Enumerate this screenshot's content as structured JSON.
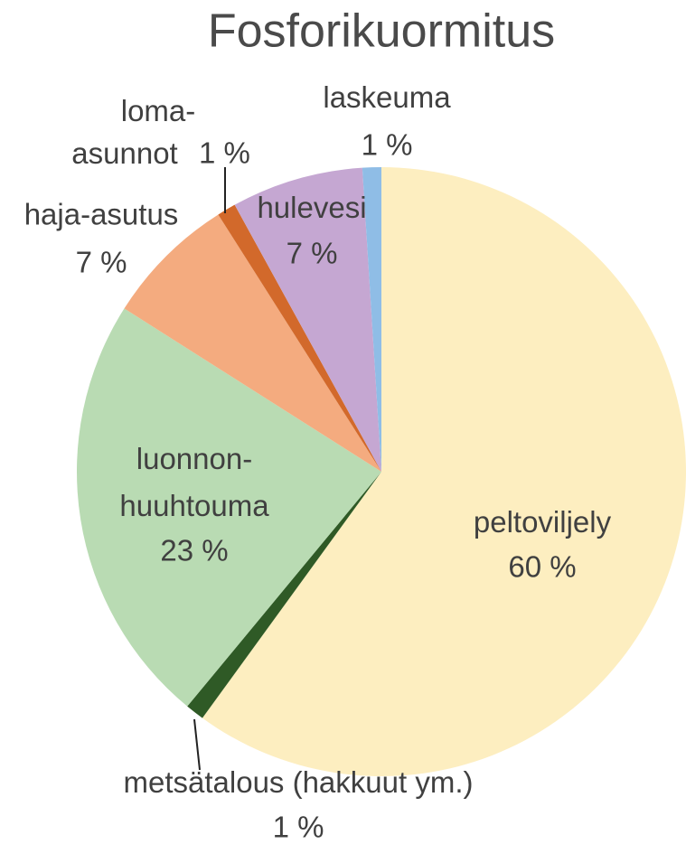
{
  "chart_data": {
    "type": "pie",
    "title": "Fosforikuormitus",
    "categories": [
      "peltoviljely",
      "metsätalous (hakkuut ym.)",
      "luonnon-huuhtouma",
      "haja-asutus",
      "loma-asunnot",
      "hulevesi",
      "laskeuma"
    ],
    "values": [
      60,
      1,
      23,
      7,
      1,
      7,
      1
    ],
    "value_labels": [
      "60 %",
      "1 %",
      "23 %",
      "7 %",
      "1 %",
      "7 %",
      "1 %"
    ],
    "colors": [
      "#fdeec0",
      "#2f5a26",
      "#b9dbb3",
      "#f4ab7f",
      "#d2692b",
      "#c5a7d2",
      "#8fbde6"
    ]
  }
}
